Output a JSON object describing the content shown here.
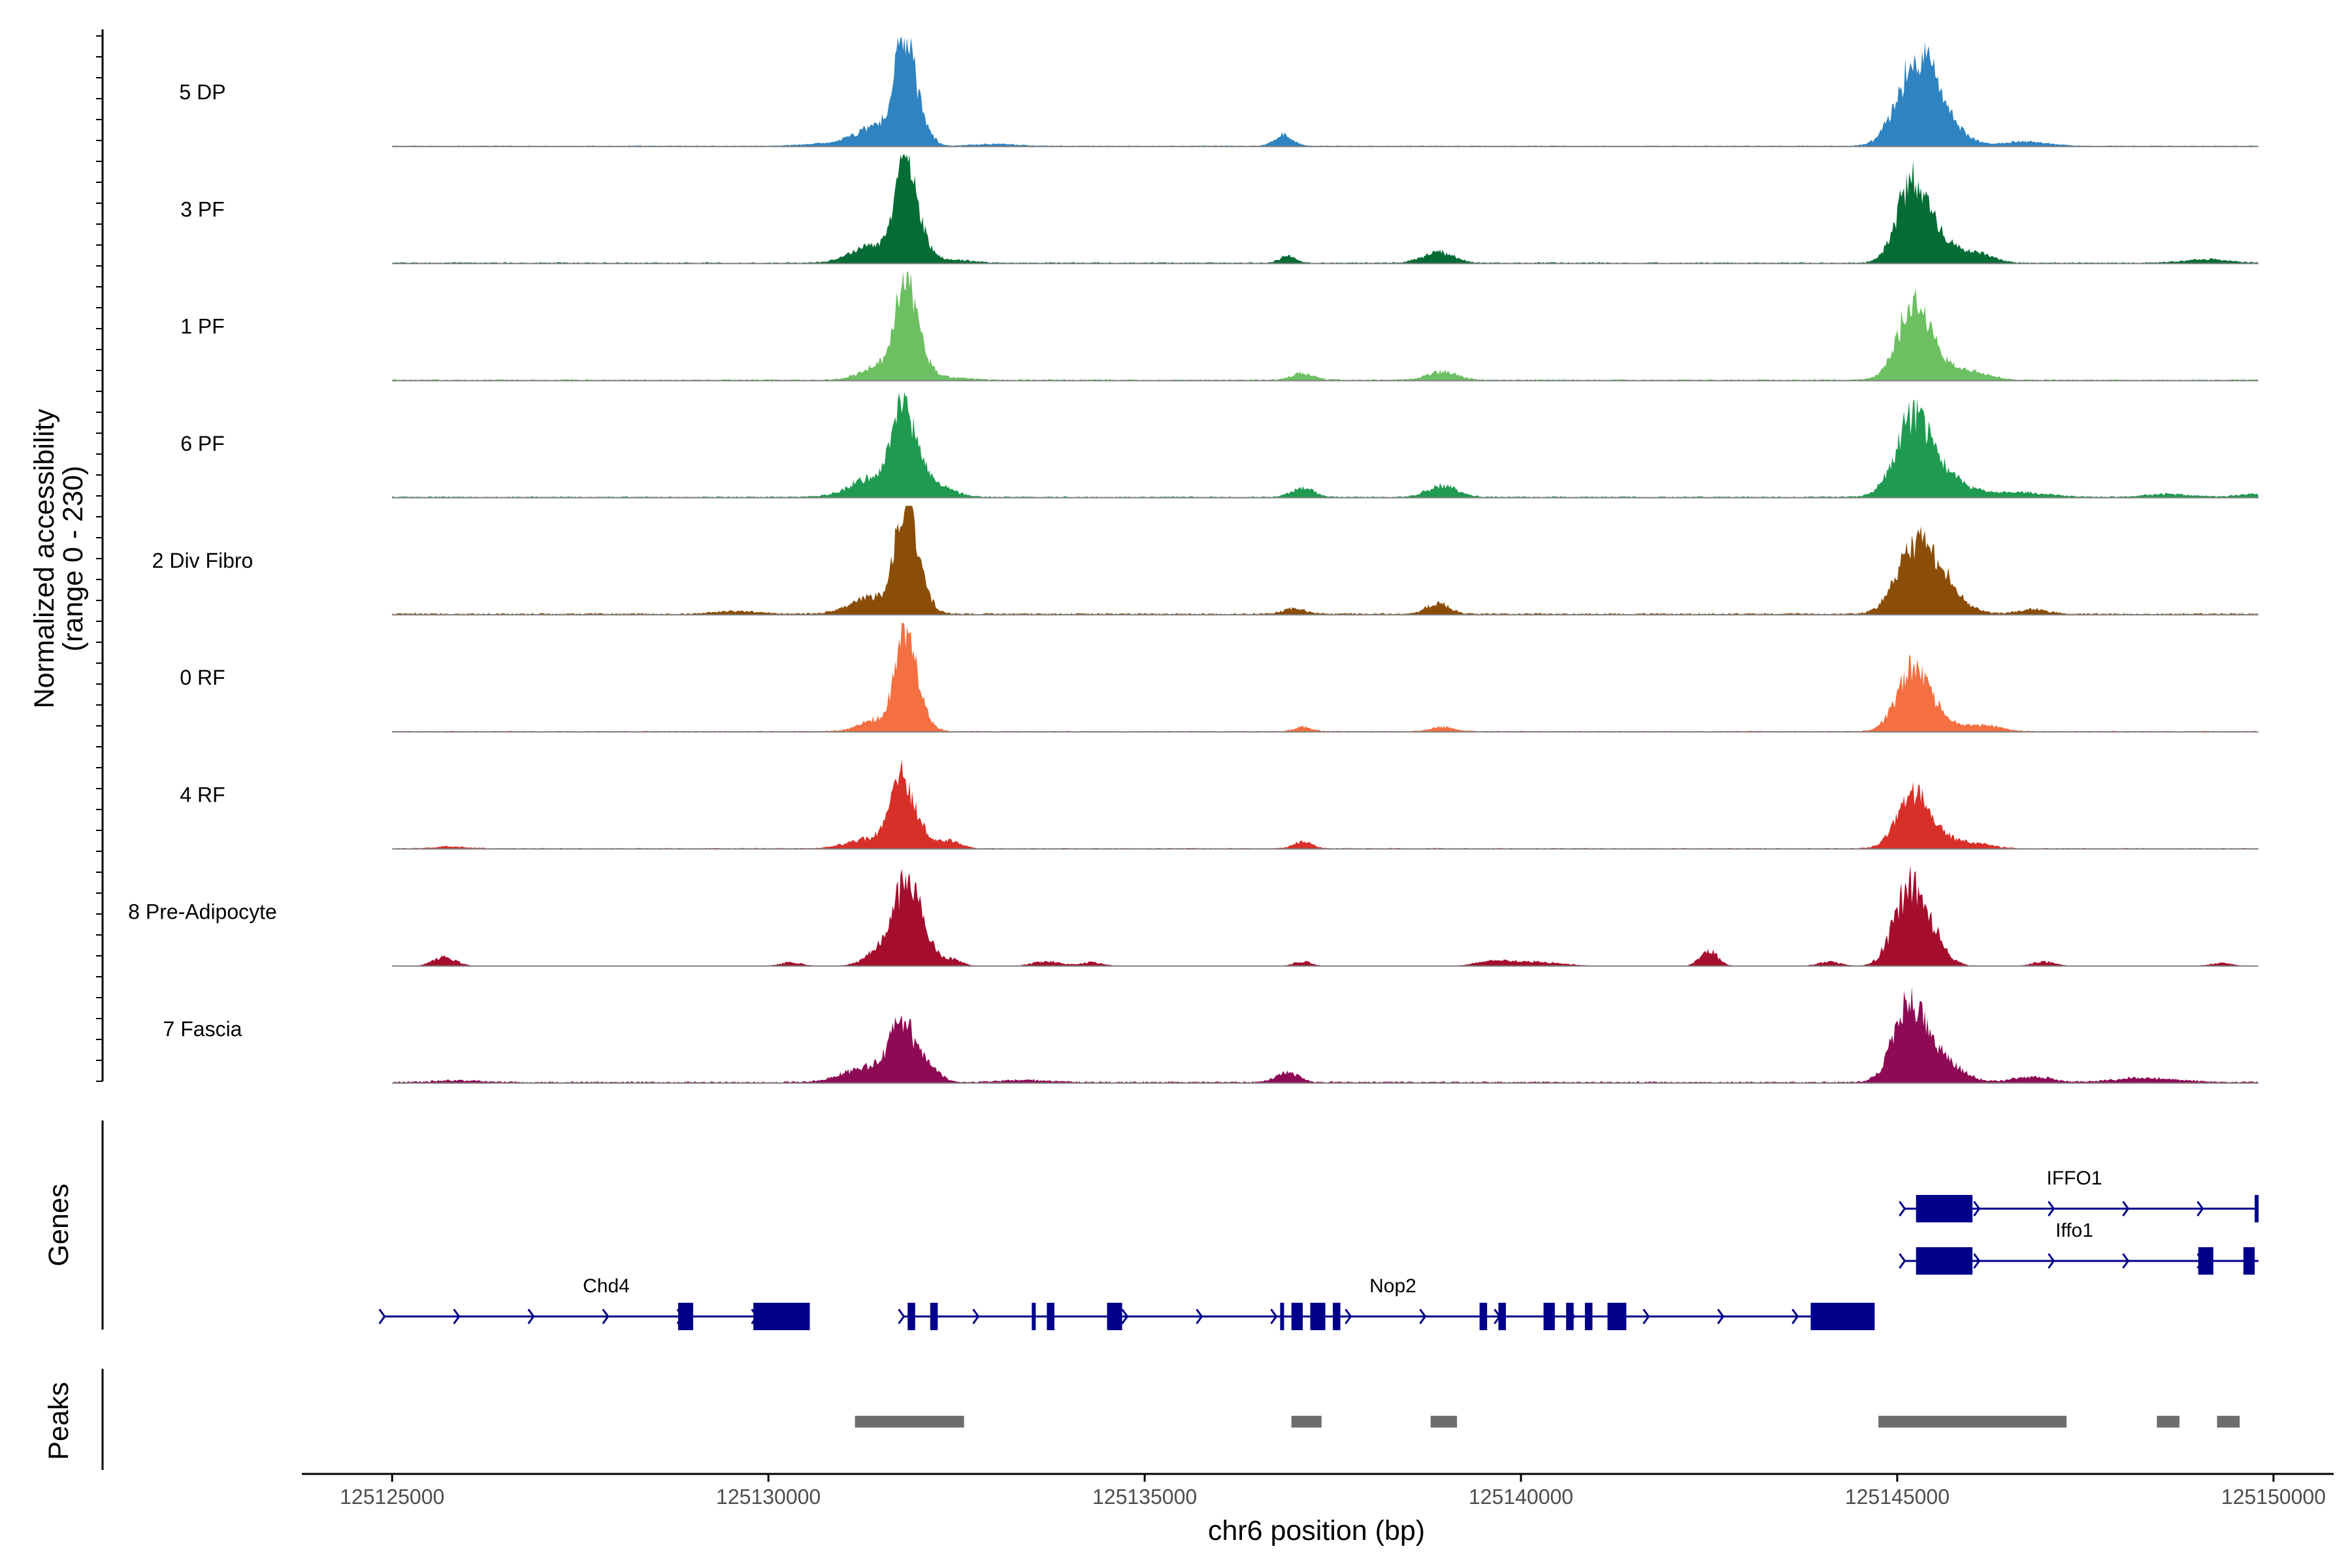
{
  "chart_data": {
    "type": "area",
    "title": "",
    "ylabel_line1": "Normalized accessibility",
    "ylabel_line2": "(range 0 - 230)",
    "ylim": [
      0,
      230
    ],
    "xlabel": "chr6 position (bp)",
    "xlim": [
      125123800,
      125150800
    ],
    "x_ticks": [
      125125000,
      125130000,
      125135000,
      125140000,
      125145000,
      125150000
    ],
    "x_tick_labels": [
      "125125000",
      "125130000",
      "125135000",
      "125140000",
      "125145000",
      "125150000"
    ],
    "region_start": 125125000,
    "region_end": 125149800,
    "tracks": [
      {
        "name": "5 DP",
        "color": "#2f83c0",
        "background": 1.5,
        "peaks": [
          [
            125131350,
            250,
            38
          ],
          [
            125131600,
            200,
            28
          ],
          [
            125131800,
            120,
            235
          ],
          [
            125131950,
            150,
            90
          ],
          [
            125136850,
            120,
            30
          ],
          [
            125145250,
            250,
            200
          ],
          [
            125145500,
            300,
            70
          ],
          [
            125146700,
            300,
            12
          ],
          [
            125130700,
            300,
            6
          ],
          [
            125133000,
            300,
            5
          ]
        ]
      },
      {
        "name": "3 PF",
        "color": "#046c35",
        "background": 2,
        "peaks": [
          [
            125131400,
            300,
            45
          ],
          [
            125131800,
            120,
            230
          ],
          [
            125131950,
            150,
            95
          ],
          [
            125136900,
            100,
            18
          ],
          [
            125138900,
            200,
            30
          ],
          [
            125145200,
            200,
            190
          ],
          [
            125145500,
            300,
            60
          ],
          [
            125146100,
            200,
            20
          ],
          [
            125149100,
            300,
            10
          ],
          [
            125132400,
            300,
            8
          ]
        ]
      },
      {
        "name": "1 PF",
        "color": "#6cc061",
        "background": 2,
        "peaks": [
          [
            125131500,
            250,
            40
          ],
          [
            125131800,
            120,
            210
          ],
          [
            125131950,
            150,
            90
          ],
          [
            125137100,
            150,
            18
          ],
          [
            125138950,
            200,
            22
          ],
          [
            125145200,
            200,
            170
          ],
          [
            125145450,
            300,
            55
          ],
          [
            125146100,
            200,
            15
          ],
          [
            125132300,
            300,
            8
          ]
        ]
      },
      {
        "name": "6 PF",
        "color": "#1f9a51",
        "background": 2,
        "peaks": [
          [
            125131400,
            300,
            55
          ],
          [
            125131750,
            130,
            200
          ],
          [
            125131950,
            150,
            100
          ],
          [
            125132300,
            200,
            25
          ],
          [
            125137100,
            150,
            25
          ],
          [
            125138950,
            200,
            30
          ],
          [
            125145200,
            220,
            180
          ],
          [
            125145500,
            350,
            65
          ],
          [
            125146600,
            400,
            12
          ],
          [
            125148600,
            300,
            8
          ],
          [
            125149700,
            200,
            8
          ]
        ]
      },
      {
        "name": "2 Div Fibro",
        "color": "#8b4e08",
        "background": 2.5,
        "peaks": [
          [
            125131400,
            300,
            45
          ],
          [
            125131800,
            120,
            240
          ],
          [
            125131950,
            150,
            110
          ],
          [
            125137000,
            150,
            15
          ],
          [
            125138900,
            150,
            28
          ],
          [
            125145250,
            250,
            145
          ],
          [
            125145500,
            300,
            80
          ],
          [
            125146800,
            200,
            12
          ],
          [
            125129600,
            300,
            8
          ]
        ]
      },
      {
        "name": "0 RF",
        "color": "#f46f41",
        "background": 1.5,
        "peaks": [
          [
            125131500,
            250,
            35
          ],
          [
            125131800,
            120,
            200
          ],
          [
            125131950,
            150,
            80
          ],
          [
            125137100,
            120,
            12
          ],
          [
            125138950,
            150,
            12
          ],
          [
            125145200,
            200,
            150
          ],
          [
            125145450,
            300,
            40
          ],
          [
            125146200,
            200,
            15
          ]
        ]
      },
      {
        "name": "4 RF",
        "color": "#d73029",
        "background": 1.5,
        "peaks": [
          [
            125131400,
            300,
            30
          ],
          [
            125131750,
            130,
            160
          ],
          [
            125131950,
            150,
            60
          ],
          [
            125132400,
            150,
            20
          ],
          [
            125137100,
            120,
            18
          ],
          [
            125145200,
            200,
            130
          ],
          [
            125145450,
            300,
            40
          ],
          [
            125146100,
            200,
            10
          ],
          [
            125125800,
            200,
            5
          ]
        ]
      },
      {
        "name": "8 Pre-Adipocyte",
        "color": "#a50d2d",
        "background": 0,
        "peaks": [
          [
            125125700,
            150,
            25
          ],
          [
            125130300,
            150,
            10
          ],
          [
            125131500,
            200,
            45
          ],
          [
            125131800,
            150,
            170
          ],
          [
            125132000,
            150,
            100
          ],
          [
            125132400,
            150,
            20
          ],
          [
            125133700,
            200,
            12
          ],
          [
            125134300,
            150,
            10
          ],
          [
            125137100,
            120,
            12
          ],
          [
            125139600,
            200,
            10
          ],
          [
            125140100,
            400,
            12
          ],
          [
            125142500,
            120,
            40
          ],
          [
            125144100,
            150,
            12
          ],
          [
            125145150,
            200,
            200
          ],
          [
            125145450,
            200,
            60
          ],
          [
            125146950,
            150,
            12
          ],
          [
            125149300,
            150,
            8
          ]
        ]
      },
      {
        "name": "7 Fascia",
        "color": "#8e0a55",
        "background": 2.5,
        "peaks": [
          [
            125131300,
            300,
            40
          ],
          [
            125131750,
            150,
            130
          ],
          [
            125132000,
            200,
            60
          ],
          [
            125136900,
            150,
            25
          ],
          [
            125145150,
            200,
            170
          ],
          [
            125145450,
            300,
            80
          ],
          [
            125146800,
            250,
            15
          ],
          [
            125148300,
            400,
            12
          ],
          [
            125125900,
            300,
            5
          ],
          [
            125133400,
            300,
            6
          ]
        ]
      }
    ],
    "genes_title": "Genes",
    "genes": [
      {
        "label": "IFFO1",
        "strand": "+",
        "start": 125145100,
        "end": 125149800,
        "exons": [
          [
            125145250,
            125146000
          ],
          [
            125149750,
            125149800
          ]
        ]
      },
      {
        "label": "Iffo1",
        "strand": "+",
        "start": 125145100,
        "end": 125149800,
        "exons": [
          [
            125145250,
            125146000
          ],
          [
            125149000,
            125149200
          ],
          [
            125149600,
            125149750
          ]
        ]
      },
      {
        "label": "Chd4",
        "strand": "+",
        "start": 125124900,
        "end": 125130550,
        "exons": [
          [
            125128800,
            125129000
          ],
          [
            125129800,
            125130550
          ]
        ]
      },
      {
        "label": "Nop2",
        "strand": "+",
        "start": 125131800,
        "end": 125144700,
        "exons": [
          [
            125131850,
            125131950
          ],
          [
            125132150,
            125132250
          ],
          [
            125133500,
            125133550
          ],
          [
            125133700,
            125133800
          ],
          [
            125134500,
            125134700
          ],
          [
            125136800,
            125136850
          ],
          [
            125136950,
            125137100
          ],
          [
            125137200,
            125137400
          ],
          [
            125137500,
            125137600
          ],
          [
            125139450,
            125139550
          ],
          [
            125139700,
            125139800
          ],
          [
            125140300,
            125140450
          ],
          [
            125140600,
            125140700
          ],
          [
            125140850,
            125140950
          ],
          [
            125141150,
            125141400
          ],
          [
            125143850,
            125144700
          ]
        ]
      }
    ],
    "peaks_title": "Peaks",
    "peak_regions": [
      [
        125131150,
        125132600
      ],
      [
        125136950,
        125137350
      ],
      [
        125138800,
        125139150
      ],
      [
        125144750,
        125147250
      ],
      [
        125148450,
        125148750
      ],
      [
        125149250,
        125149550
      ]
    ]
  }
}
